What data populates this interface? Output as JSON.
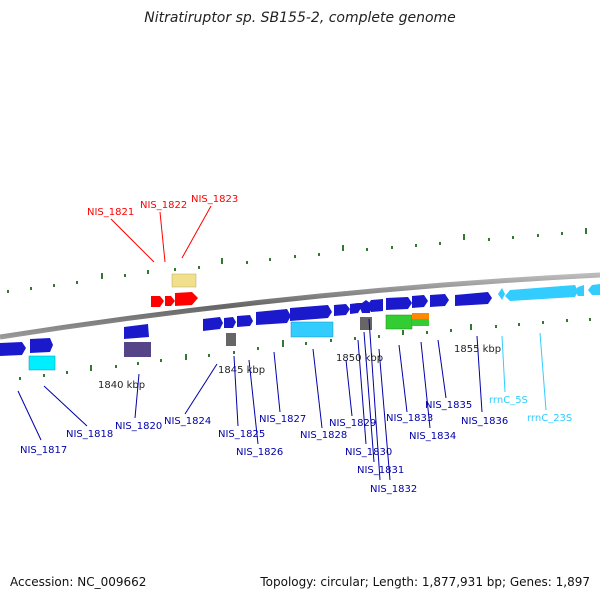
{
  "title": "Nitratiruptor sp. SB155-2, complete genome",
  "footer": {
    "accession": "Accession: NC_009662",
    "summary": "Topology: circular; Length: 1,877,931 bp; Genes: 1,897"
  },
  "colors": {
    "red": "#ff0000",
    "blue": "#0000cc",
    "label_blue": "#0000aa",
    "light_blue": "#33ccff",
    "khaki": "#f0e08c",
    "slate": "#554488",
    "gray": "#666666",
    "green": "#33cc33",
    "orange": "#ff8800",
    "tick_green": "#337733"
  },
  "kbp_labels": [
    "1840 kbp",
    "1845 kbp",
    "1850 kbp",
    "1855 kbp"
  ],
  "gene_labels": {
    "nis1817": "NIS_1817",
    "nis1818": "NIS_1818",
    "nis1820": "NIS_1820",
    "nis1821": "NIS_1821",
    "nis1822": "NIS_1822",
    "nis1823": "NIS_1823",
    "nis1824": "NIS_1824",
    "nis1825": "NIS_1825",
    "nis1826": "NIS_1826",
    "nis1827": "NIS_1827",
    "nis1828": "NIS_1828",
    "nis1829": "NIS_1829",
    "nis1830": "NIS_1830",
    "nis1831": "NIS_1831",
    "nis1832": "NIS_1832",
    "nis1833": "NIS_1833",
    "nis1834": "NIS_1834",
    "nis1835": "NIS_1835",
    "nis1836": "NIS_1836",
    "rrnc5s": "rrnC_5S",
    "rrnc23s": "rrnC_23S"
  }
}
